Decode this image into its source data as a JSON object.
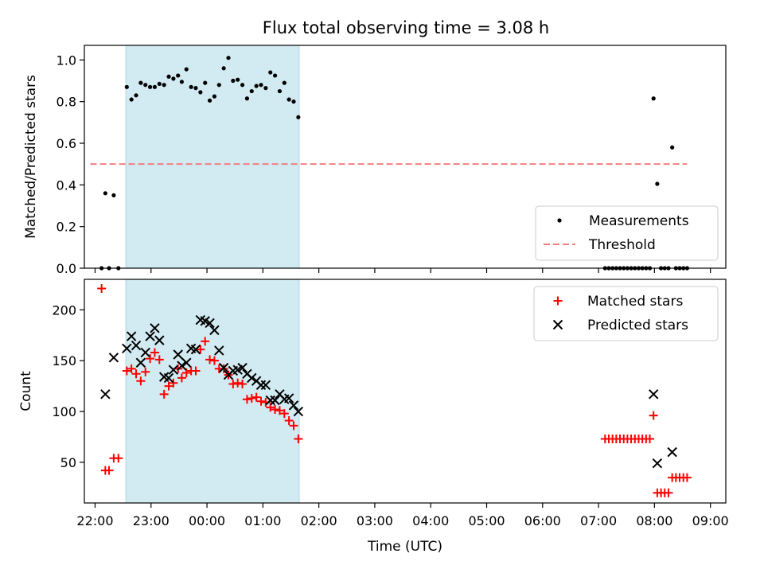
{
  "chart_data": {
    "title": "Flux total observing time = 3.08 h",
    "xlabel": "Time (UTC)",
    "x_ticks": [
      "22:00",
      "23:00",
      "00:00",
      "01:00",
      "02:00",
      "03:00",
      "04:00",
      "05:00",
      "06:00",
      "07:00",
      "08:00",
      "09:00"
    ],
    "shaded_interval": {
      "start": "22:33",
      "end": "01:39",
      "color": "#add8e6"
    },
    "panels": [
      {
        "type": "scatter",
        "ylabel": "Matched/Predicted stars",
        "ylim": [
          0,
          1.07
        ],
        "y_ticks": [
          "0.0",
          "0.2",
          "0.4",
          "0.6",
          "0.8",
          "1.0"
        ],
        "legend_placement": "lower right",
        "series": [
          {
            "name": "Measurements",
            "marker": "dot",
            "color": "#000000",
            "points": [
              [
                "22:07",
                0
              ],
              [
                "22:11",
                0.36
              ],
              [
                "22:15",
                0
              ],
              [
                "22:20",
                0.35
              ],
              [
                "22:25",
                0
              ],
              [
                "22:34",
                0.87
              ],
              [
                "22:39",
                0.81
              ],
              [
                "22:44",
                0.83
              ],
              [
                "22:49",
                0.89
              ],
              [
                "22:54",
                0.88
              ],
              [
                "22:59",
                0.87
              ],
              [
                "23:04",
                0.87
              ],
              [
                "23:09",
                0.885
              ],
              [
                "23:14",
                0.88
              ],
              [
                "23:19",
                0.92
              ],
              [
                "23:24",
                0.91
              ],
              [
                "23:29",
                0.925
              ],
              [
                "23:33",
                0.895
              ],
              [
                "23:38",
                0.955
              ],
              [
                "23:43",
                0.87
              ],
              [
                "23:48",
                0.865
              ],
              [
                "23:53",
                0.845
              ],
              [
                "23:58",
                0.89
              ],
              [
                "00:03",
                0.805
              ],
              [
                "00:08",
                0.825
              ],
              [
                "00:13",
                0.88
              ],
              [
                "00:18",
                0.96
              ],
              [
                "00:23",
                1.01
              ],
              [
                "00:28",
                0.9
              ],
              [
                "00:33",
                0.905
              ],
              [
                "00:38",
                0.88
              ],
              [
                "00:43",
                0.815
              ],
              [
                "00:48",
                0.85
              ],
              [
                "00:53",
                0.875
              ],
              [
                "00:58",
                0.88
              ],
              [
                "01:03",
                0.865
              ],
              [
                "01:08",
                0.94
              ],
              [
                "01:13",
                0.925
              ],
              [
                "01:18",
                0.85
              ],
              [
                "01:23",
                0.89
              ],
              [
                "01:28",
                0.81
              ],
              [
                "01:33",
                0.8
              ],
              [
                "01:38",
                0.725
              ],
              [
                "07:07",
                0
              ],
              [
                "07:11",
                0
              ],
              [
                "07:15",
                0
              ],
              [
                "07:19",
                0
              ],
              [
                "07:23",
                0
              ],
              [
                "07:27",
                0
              ],
              [
                "07:31",
                0
              ],
              [
                "07:35",
                0
              ],
              [
                "07:39",
                0
              ],
              [
                "07:43",
                0
              ],
              [
                "07:47",
                0
              ],
              [
                "07:51",
                0
              ],
              [
                "07:55",
                0
              ],
              [
                "07:59",
                0.815
              ],
              [
                "08:03",
                0.405
              ],
              [
                "08:07",
                0
              ],
              [
                "08:11",
                0
              ],
              [
                "08:15",
                0
              ],
              [
                "08:19",
                0.58
              ],
              [
                "08:23",
                0
              ],
              [
                "08:27",
                0
              ],
              [
                "08:31",
                0
              ],
              [
                "08:35",
                0
              ]
            ]
          },
          {
            "name": "Threshold",
            "style": "dashed line",
            "color": "#f08080",
            "y": 0.5,
            "x_range": [
              "21:55",
              "08:35"
            ]
          }
        ]
      },
      {
        "type": "scatter",
        "ylabel": "Count",
        "ylim": [
          10,
          230
        ],
        "y_ticks": [
          "50",
          "100",
          "150",
          "200"
        ],
        "legend_placement": "upper right",
        "series": [
          {
            "name": "Matched stars",
            "marker": "plus",
            "color": "#ff0000",
            "points": [
              [
                "22:07",
                221
              ],
              [
                "22:11",
                42
              ],
              [
                "22:15",
                42
              ],
              [
                "22:20",
                54
              ],
              [
                "22:25",
                54
              ],
              [
                "22:34",
                140
              ],
              [
                "22:39",
                142
              ],
              [
                "22:44",
                137
              ],
              [
                "22:49",
                130
              ],
              [
                "22:54",
                139
              ],
              [
                "22:59",
                152
              ],
              [
                "23:04",
                158
              ],
              [
                "23:09",
                151
              ],
              [
                "23:14",
                117
              ],
              [
                "23:19",
                125
              ],
              [
                "23:24",
                128
              ],
              [
                "23:29",
                142
              ],
              [
                "23:33",
                133
              ],
              [
                "23:38",
                138
              ],
              [
                "23:43",
                140
              ],
              [
                "23:48",
                140
              ],
              [
                "23:53",
                161
              ],
              [
                "23:58",
                169
              ],
              [
                "00:03",
                151
              ],
              [
                "00:08",
                150
              ],
              [
                "00:13",
                142
              ],
              [
                "00:18",
                142
              ],
              [
                "00:23",
                136
              ],
              [
                "00:28",
                127
              ],
              [
                "00:33",
                128
              ],
              [
                "00:38",
                127
              ],
              [
                "00:43",
                112
              ],
              [
                "00:48",
                113
              ],
              [
                "00:53",
                114
              ],
              [
                "00:58",
                110
              ],
              [
                "01:03",
                109
              ],
              [
                "01:08",
                104
              ],
              [
                "01:13",
                102
              ],
              [
                "01:18",
                101
              ],
              [
                "01:23",
                98
              ],
              [
                "01:28",
                91
              ],
              [
                "01:33",
                86
              ],
              [
                "01:38",
                73
              ],
              [
                "07:07",
                73
              ],
              [
                "07:11",
                73
              ],
              [
                "07:15",
                73
              ],
              [
                "07:19",
                73
              ],
              [
                "07:23",
                73
              ],
              [
                "07:27",
                73
              ],
              [
                "07:31",
                73
              ],
              [
                "07:35",
                73
              ],
              [
                "07:39",
                73
              ],
              [
                "07:43",
                73
              ],
              [
                "07:47",
                73
              ],
              [
                "07:51",
                73
              ],
              [
                "07:55",
                73
              ],
              [
                "07:59",
                96
              ],
              [
                "08:03",
                20
              ],
              [
                "08:07",
                20
              ],
              [
                "08:11",
                20
              ],
              [
                "08:15",
                20
              ],
              [
                "08:19",
                35
              ],
              [
                "08:23",
                35
              ],
              [
                "08:27",
                35
              ],
              [
                "08:31",
                35
              ],
              [
                "08:35",
                35
              ]
            ]
          },
          {
            "name": "Predicted stars",
            "marker": "x",
            "color": "#000000",
            "points": [
              [
                "22:11",
                117
              ],
              [
                "22:20",
                153
              ],
              [
                "22:34",
                162
              ],
              [
                "22:39",
                174
              ],
              [
                "22:44",
                165
              ],
              [
                "22:49",
                148
              ],
              [
                "22:54",
                158
              ],
              [
                "22:59",
                174
              ],
              [
                "23:04",
                182
              ],
              [
                "23:09",
                170
              ],
              [
                "23:14",
                134
              ],
              [
                "23:19",
                133
              ],
              [
                "23:24",
                141
              ],
              [
                "23:29",
                156
              ],
              [
                "23:33",
                145
              ],
              [
                "23:38",
                148
              ],
              [
                "23:43",
                162
              ],
              [
                "23:48",
                161
              ],
              [
                "23:53",
                190
              ],
              [
                "23:58",
                189
              ],
              [
                "00:03",
                187
              ],
              [
                "00:08",
                180
              ],
              [
                "00:13",
                160
              ],
              [
                "00:18",
                143
              ],
              [
                "00:23",
                136
              ],
              [
                "00:28",
                140
              ],
              [
                "00:33",
                141
              ],
              [
                "00:38",
                143
              ],
              [
                "00:43",
                137
              ],
              [
                "00:48",
                133
              ],
              [
                "00:53",
                130
              ],
              [
                "00:58",
                126
              ],
              [
                "01:03",
                126
              ],
              [
                "01:08",
                111
              ],
              [
                "01:13",
                111
              ],
              [
                "01:18",
                117
              ],
              [
                "01:23",
                112
              ],
              [
                "01:28",
                113
              ],
              [
                "01:33",
                106
              ],
              [
                "01:38",
                100
              ],
              [
                "07:59",
                117
              ],
              [
                "08:03",
                49
              ],
              [
                "08:19",
                60
              ]
            ]
          }
        ]
      }
    ]
  }
}
